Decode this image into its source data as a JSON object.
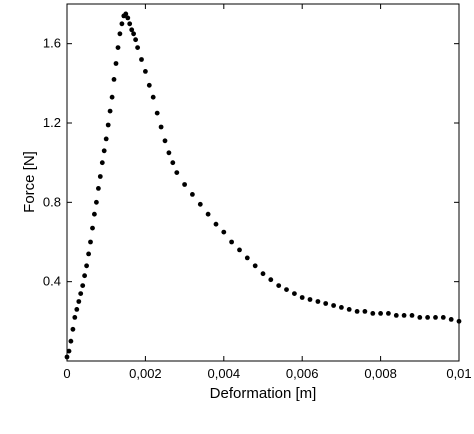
{
  "chart_data": {
    "type": "scatter",
    "title": "",
    "xlabel": "Deformation [m]",
    "ylabel": "Force [N]",
    "xlim": [
      0,
      0.01
    ],
    "ylim": [
      0,
      1.8
    ],
    "x_ticks": [
      0,
      0.002,
      0.004,
      0.006,
      0.008,
      0.01
    ],
    "x_tick_labels": [
      "0",
      "0,002",
      "0,004",
      "0,006",
      "0,008",
      "0,01"
    ],
    "y_ticks": [
      0.4,
      0.8,
      1.2,
      1.6
    ],
    "y_tick_labels": [
      "0.4",
      "0.8",
      "1.2",
      "1.6"
    ],
    "grid": false,
    "legend": false,
    "marker_color": "#000000",
    "series": [
      {
        "points": [
          [
            0.0,
            0.02
          ],
          [
            5e-05,
            0.05
          ],
          [
            0.0001,
            0.1
          ],
          [
            0.00015,
            0.16
          ],
          [
            0.0002,
            0.22
          ],
          [
            0.00025,
            0.26
          ],
          [
            0.0003,
            0.3
          ],
          [
            0.00035,
            0.34
          ],
          [
            0.0004,
            0.38
          ],
          [
            0.00045,
            0.43
          ],
          [
            0.0005,
            0.48
          ],
          [
            0.00055,
            0.54
          ],
          [
            0.0006,
            0.6
          ],
          [
            0.00065,
            0.67
          ],
          [
            0.0007,
            0.74
          ],
          [
            0.00075,
            0.8
          ],
          [
            0.0008,
            0.87
          ],
          [
            0.00085,
            0.93
          ],
          [
            0.0009,
            1.0
          ],
          [
            0.00095,
            1.06
          ],
          [
            0.001,
            1.12
          ],
          [
            0.00105,
            1.19
          ],
          [
            0.0011,
            1.26
          ],
          [
            0.00115,
            1.33
          ],
          [
            0.0012,
            1.42
          ],
          [
            0.00125,
            1.5
          ],
          [
            0.0013,
            1.58
          ],
          [
            0.00135,
            1.65
          ],
          [
            0.0014,
            1.7
          ],
          [
            0.00145,
            1.74
          ],
          [
            0.0015,
            1.75
          ],
          [
            0.00155,
            1.73
          ],
          [
            0.0016,
            1.7
          ],
          [
            0.00165,
            1.67
          ],
          [
            0.0017,
            1.65
          ],
          [
            0.00175,
            1.62
          ],
          [
            0.0018,
            1.58
          ],
          [
            0.0019,
            1.52
          ],
          [
            0.002,
            1.46
          ],
          [
            0.0021,
            1.39
          ],
          [
            0.0022,
            1.33
          ],
          [
            0.0023,
            1.25
          ],
          [
            0.0024,
            1.18
          ],
          [
            0.0025,
            1.11
          ],
          [
            0.0026,
            1.05
          ],
          [
            0.0027,
            1.0
          ],
          [
            0.0028,
            0.95
          ],
          [
            0.003,
            0.89
          ],
          [
            0.0032,
            0.84
          ],
          [
            0.0034,
            0.79
          ],
          [
            0.0036,
            0.74
          ],
          [
            0.0038,
            0.69
          ],
          [
            0.004,
            0.65
          ],
          [
            0.0042,
            0.6
          ],
          [
            0.0044,
            0.56
          ],
          [
            0.0046,
            0.52
          ],
          [
            0.0048,
            0.48
          ],
          [
            0.005,
            0.44
          ],
          [
            0.0052,
            0.41
          ],
          [
            0.0054,
            0.38
          ],
          [
            0.0056,
            0.36
          ],
          [
            0.0058,
            0.34
          ],
          [
            0.006,
            0.32
          ],
          [
            0.0062,
            0.31
          ],
          [
            0.0064,
            0.3
          ],
          [
            0.0066,
            0.29
          ],
          [
            0.0068,
            0.28
          ],
          [
            0.007,
            0.27
          ],
          [
            0.0072,
            0.26
          ],
          [
            0.0074,
            0.25
          ],
          [
            0.0076,
            0.25
          ],
          [
            0.0078,
            0.24
          ],
          [
            0.008,
            0.24
          ],
          [
            0.0082,
            0.24
          ],
          [
            0.0084,
            0.23
          ],
          [
            0.0086,
            0.23
          ],
          [
            0.0088,
            0.23
          ],
          [
            0.009,
            0.22
          ],
          [
            0.0092,
            0.22
          ],
          [
            0.0094,
            0.22
          ],
          [
            0.0096,
            0.22
          ],
          [
            0.0098,
            0.21
          ],
          [
            0.01,
            0.2
          ]
        ]
      }
    ]
  }
}
